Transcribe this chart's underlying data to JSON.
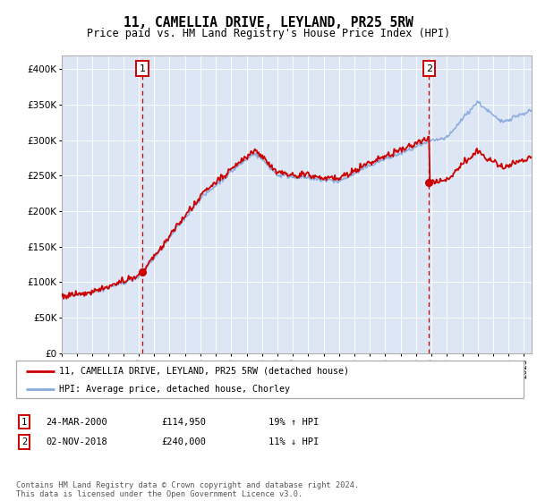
{
  "title": "11, CAMELLIA DRIVE, LEYLAND, PR25 5RW",
  "subtitle": "Price paid vs. HM Land Registry's House Price Index (HPI)",
  "background_color": "#dce6f5",
  "plot_bg_color": "#dce6f5",
  "ylim": [
    0,
    420000
  ],
  "yticks": [
    0,
    50000,
    100000,
    150000,
    200000,
    250000,
    300000,
    350000,
    400000
  ],
  "ytick_labels": [
    "£0",
    "£50K",
    "£100K",
    "£150K",
    "£200K",
    "£250K",
    "£300K",
    "£350K",
    "£400K"
  ],
  "xlim_start": 1995.0,
  "xlim_end": 2025.5,
  "xtick_years": [
    1995,
    1996,
    1997,
    1998,
    1999,
    2000,
    2001,
    2002,
    2003,
    2004,
    2005,
    2006,
    2007,
    2008,
    2009,
    2010,
    2011,
    2012,
    2013,
    2014,
    2015,
    2016,
    2017,
    2018,
    2019,
    2020,
    2021,
    2022,
    2023,
    2024,
    2025
  ],
  "transaction_color": "#cc0000",
  "hpi_color": "#88aadd",
  "marker_color": "#cc0000",
  "vline_color": "#cc0000",
  "annotation_box_color": "#cc0000",
  "legend_entry1": "11, CAMELLIA DRIVE, LEYLAND, PR25 5RW (detached house)",
  "legend_entry2": "HPI: Average price, detached house, Chorley",
  "point1_date": "24-MAR-2000",
  "point1_price": "£114,950",
  "point1_hpi": "19% ↑ HPI",
  "point1_x": 2000.23,
  "point1_y": 114950,
  "point2_date": "02-NOV-2018",
  "point2_price": "£240,000",
  "point2_hpi": "11% ↓ HPI",
  "point2_x": 2018.84,
  "point2_y": 240000,
  "footer": "Contains HM Land Registry data © Crown copyright and database right 2024.\nThis data is licensed under the Open Government Licence v3.0."
}
